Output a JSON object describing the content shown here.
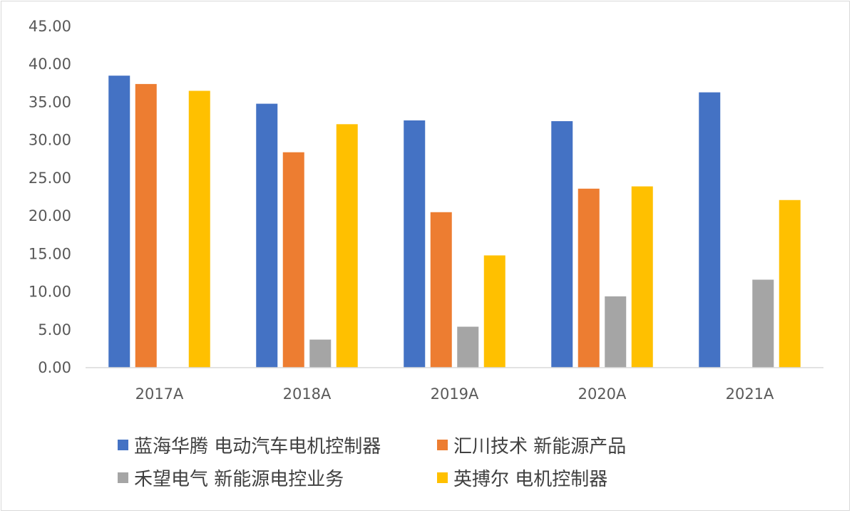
{
  "chart_data": {
    "type": "bar",
    "categories": [
      "2017A",
      "2018A",
      "2019A",
      "2020A",
      "2021A"
    ],
    "series": [
      {
        "name": "蓝海华腾  电动汽车电机控制器",
        "color": "#4472C4",
        "values": [
          38.5,
          34.8,
          32.6,
          32.5,
          36.3
        ]
      },
      {
        "name": "汇川技术  新能源产品",
        "color": "#ED7D31",
        "values": [
          37.4,
          28.4,
          20.5,
          23.6,
          null
        ]
      },
      {
        "name": "禾望电气  新能源电控业务",
        "color": "#A5A5A5",
        "values": [
          null,
          3.7,
          5.4,
          9.4,
          11.6
        ]
      },
      {
        "name": "英搏尔  电机控制器",
        "color": "#FFC000",
        "values": [
          36.5,
          32.1,
          14.8,
          23.9,
          22.1
        ]
      }
    ],
    "y_ticks": [
      "0.00",
      "5.00",
      "10.00",
      "15.00",
      "20.00",
      "25.00",
      "30.00",
      "35.00",
      "40.00",
      "45.00"
    ],
    "ylim": [
      0,
      45
    ],
    "grid": false,
    "legend_position": "bottom"
  }
}
